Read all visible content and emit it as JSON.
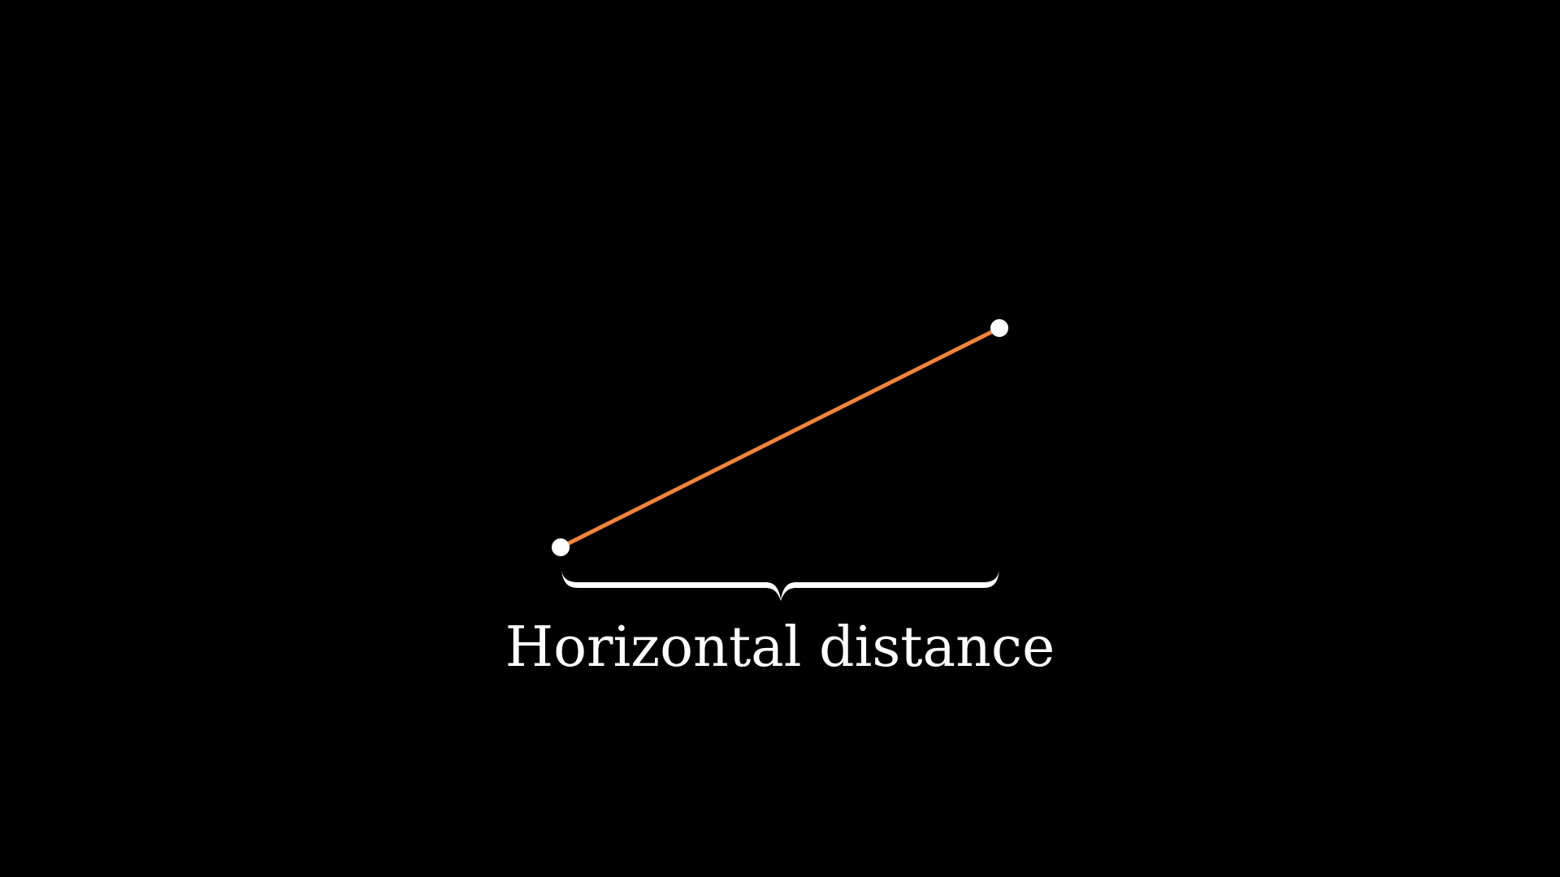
{
  "diagram": {
    "label": "Horizontal distance",
    "colors": {
      "background": "#000000",
      "segment": "#f0843c",
      "point": "#ffffff",
      "brace": "#ffffff",
      "text": "#ffffff"
    }
  }
}
